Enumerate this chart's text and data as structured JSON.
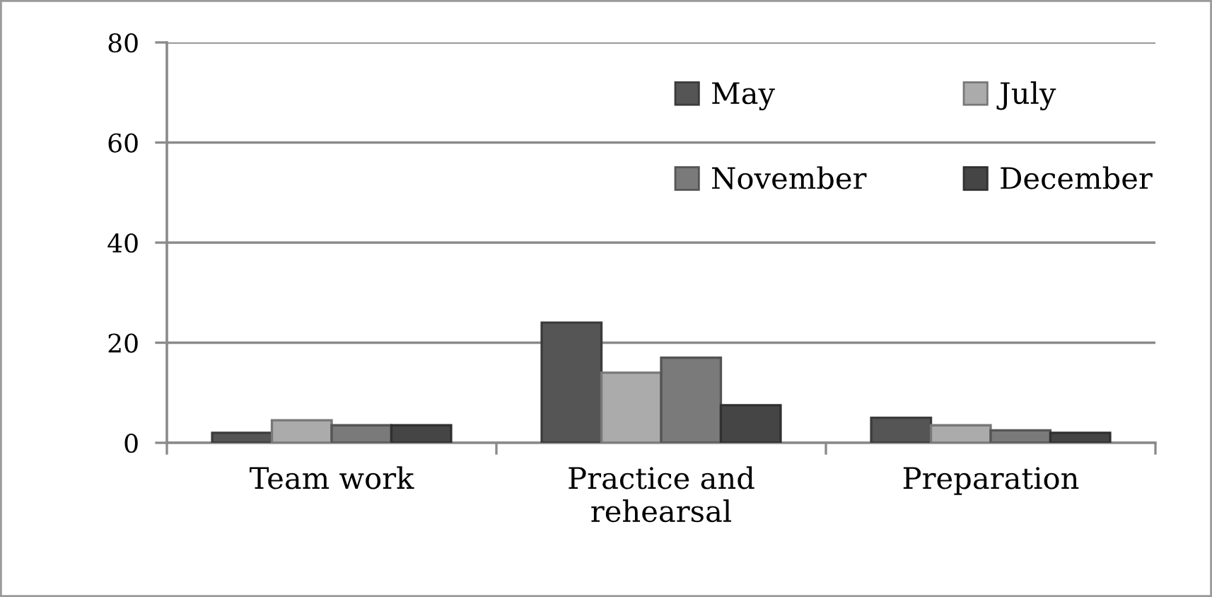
{
  "chart_data": {
    "type": "bar",
    "categories": [
      "Team work",
      "Practice and\nrehearsal",
      "Preparation"
    ],
    "series": [
      {
        "name": "May",
        "color": "#555555",
        "values": [
          2,
          24,
          5
        ]
      },
      {
        "name": "July",
        "color": "#ababab",
        "values": [
          4.5,
          14,
          3.5
        ]
      },
      {
        "name": "November",
        "color": "#7a7a7a",
        "values": [
          3.5,
          17,
          2.5
        ]
      },
      {
        "name": "December",
        "color": "#454545",
        "values": [
          3.5,
          7.5,
          2
        ]
      }
    ],
    "ylim": [
      0,
      80
    ],
    "yticks": [
      0,
      20,
      40,
      60,
      80
    ],
    "grid": "y",
    "legend": "top right"
  }
}
